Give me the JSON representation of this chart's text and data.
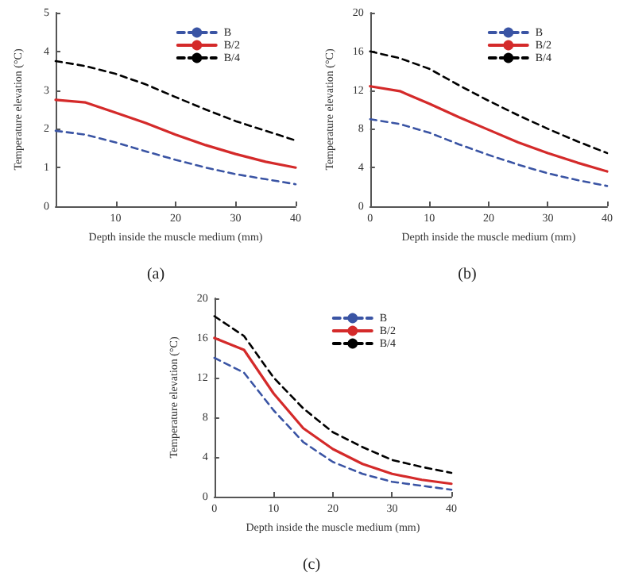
{
  "chart_data": [
    {
      "type": "line",
      "xlabel": "Depth inside the muscle medium (mm)",
      "ylabel": "Temperature elevation (°C)",
      "annotations": [
        "(a)"
      ],
      "x": [
        0,
        5,
        10,
        15,
        20,
        25,
        30,
        35,
        40
      ],
      "xlim": [
        0,
        40
      ],
      "xticks": [
        10,
        20,
        30,
        40
      ],
      "ylim": [
        0,
        5
      ],
      "yticks": [
        0,
        1,
        2,
        3,
        4,
        5
      ],
      "legend": "top right",
      "marker": "none",
      "series": [
        {
          "name": "B",
          "color": "#3a54a4",
          "line_style": "dashed",
          "values": [
            1.95,
            1.85,
            1.65,
            1.42,
            1.2,
            1.0,
            0.83,
            0.7,
            0.57
          ]
        },
        {
          "name": "B/2",
          "color": "#d42a2a",
          "line_style": "solid",
          "values": [
            2.75,
            2.68,
            2.42,
            2.15,
            1.85,
            1.58,
            1.35,
            1.15,
            1.0
          ]
        },
        {
          "name": "B/4",
          "color": "#000000",
          "line_style": "dashed",
          "values": [
            3.75,
            3.62,
            3.42,
            3.15,
            2.82,
            2.5,
            2.2,
            1.95,
            1.7
          ]
        }
      ]
    },
    {
      "type": "line",
      "xlabel": "Depth inside the muscle medium (mm)",
      "ylabel": "Temperature elevation (°C)",
      "annotations": [
        "(b)"
      ],
      "x": [
        0,
        5,
        10,
        15,
        20,
        25,
        30,
        35,
        40
      ],
      "xlim": [
        0,
        40
      ],
      "xticks": [
        0,
        10,
        20,
        30,
        40
      ],
      "ylim": [
        0,
        20
      ],
      "yticks": [
        0,
        4,
        8,
        12,
        16,
        20
      ],
      "legend": "top right",
      "marker": "none",
      "series": [
        {
          "name": "B",
          "color": "#3a54a4",
          "line_style": "dashed",
          "values": [
            9.0,
            8.5,
            7.6,
            6.4,
            5.3,
            4.3,
            3.4,
            2.7,
            2.1
          ]
        },
        {
          "name": "B/2",
          "color": "#d42a2a",
          "line_style": "solid",
          "values": [
            12.4,
            11.9,
            10.6,
            9.2,
            7.9,
            6.6,
            5.5,
            4.5,
            3.6
          ]
        },
        {
          "name": "B/4",
          "color": "#000000",
          "line_style": "dashed",
          "values": [
            16.0,
            15.3,
            14.2,
            12.5,
            10.9,
            9.4,
            8.0,
            6.7,
            5.5
          ]
        }
      ]
    },
    {
      "type": "line",
      "xlabel": "Depth inside the muscle medium (mm)",
      "ylabel": "Temperature elevation (°C)",
      "annotations": [
        "(c)"
      ],
      "x": [
        0,
        5,
        10,
        15,
        20,
        25,
        30,
        35,
        40
      ],
      "xlim": [
        0,
        40
      ],
      "xticks": [
        0,
        10,
        20,
        30,
        40
      ],
      "ylim": [
        0,
        20
      ],
      "yticks": [
        0,
        4,
        8,
        12,
        16,
        20
      ],
      "legend": "top right",
      "marker": "none",
      "series": [
        {
          "name": "B",
          "color": "#3a54a4",
          "line_style": "dashed",
          "values": [
            14.0,
            12.5,
            8.7,
            5.5,
            3.5,
            2.3,
            1.5,
            1.1,
            0.7
          ]
        },
        {
          "name": "B/2",
          "color": "#d42a2a",
          "line_style": "solid",
          "values": [
            16.0,
            14.8,
            10.4,
            6.9,
            4.8,
            3.3,
            2.3,
            1.7,
            1.3
          ]
        },
        {
          "name": "B/4",
          "color": "#000000",
          "line_style": "dashed",
          "values": [
            18.2,
            16.2,
            12.0,
            8.9,
            6.5,
            5.0,
            3.7,
            3.0,
            2.4
          ]
        }
      ]
    }
  ]
}
